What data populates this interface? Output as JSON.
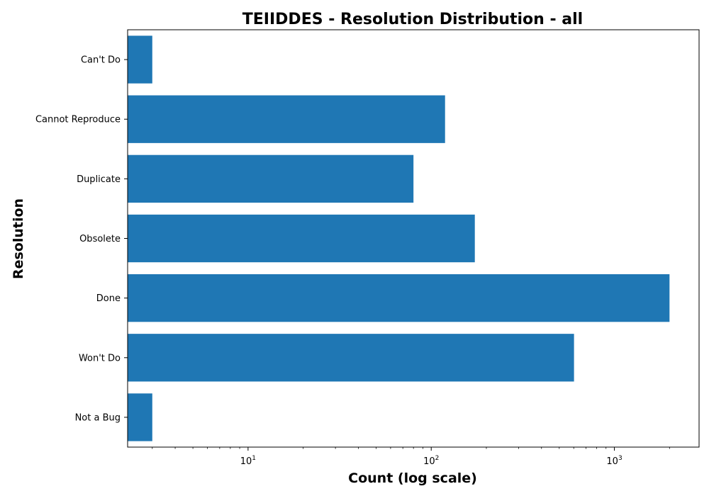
{
  "chart_data": {
    "type": "bar",
    "orientation": "horizontal",
    "title": "TEIIDDES - Resolution Distribution - all",
    "xlabel": "Count (log scale)",
    "ylabel": "Resolution",
    "xscale": "log",
    "xlim": [
      2.2,
      2900
    ],
    "xticks": [
      {
        "base": "10",
        "exp": "1",
        "value": 10
      },
      {
        "base": "10",
        "exp": "2",
        "value": 100
      },
      {
        "base": "10",
        "exp": "3",
        "value": 1000
      }
    ],
    "categories": [
      "Can't Do",
      "Cannot Reproduce",
      "Duplicate",
      "Obsolete",
      "Done",
      "Won't Do",
      "Not a Bug"
    ],
    "values": [
      3,
      119,
      80,
      173,
      2000,
      602,
      3
    ],
    "bar_color": "#1f77b4",
    "grid": false,
    "legend": "none"
  }
}
